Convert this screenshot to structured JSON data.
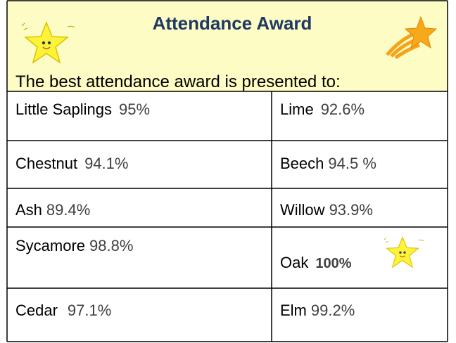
{
  "header": {
    "title": "Attendance Award",
    "subtitle": "The best attendance award is presented to:"
  },
  "table": {
    "rows": [
      [
        {
          "name": "Little Saplings",
          "value": "95%"
        },
        {
          "name": "Lime",
          "value": "92.6%"
        }
      ],
      [
        {
          "name": "Chestnut",
          "value": "94.1%"
        },
        {
          "name": "Beech",
          "value": "94.5 %"
        }
      ],
      [
        {
          "name": "Ash",
          "value": "89.4%"
        },
        {
          "name": "Willow",
          "value": "93.9%"
        }
      ],
      [
        {
          "name": "Sycamore",
          "value": "98.8%"
        },
        {
          "name": "Oak",
          "value": "100%"
        }
      ],
      [
        {
          "name": "Cedar",
          "value": "97.1%"
        },
        {
          "name": "Elm",
          "value": "99.2%"
        }
      ]
    ]
  }
}
